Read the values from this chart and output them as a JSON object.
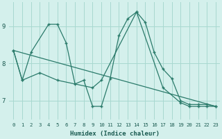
{
  "xlabel": "Humidex (Indice chaleur)",
  "background_color": "#d4f0ec",
  "grid_color": "#a8d8d0",
  "line_color": "#2a7a6a",
  "xlim": [
    -0.5,
    23.5
  ],
  "ylim": [
    6.5,
    9.65
  ],
  "yticks": [
    7,
    8,
    9
  ],
  "xticks": [
    0,
    1,
    2,
    3,
    4,
    5,
    6,
    7,
    8,
    9,
    10,
    11,
    12,
    13,
    14,
    15,
    16,
    17,
    18,
    19,
    20,
    21,
    22,
    23
  ],
  "line1_x": [
    0,
    1,
    2,
    4,
    5,
    6,
    7,
    8,
    9,
    10,
    11,
    12,
    13,
    14,
    15,
    16,
    17,
    18,
    19,
    20,
    21,
    22,
    23
  ],
  "line1_y": [
    8.35,
    7.55,
    8.3,
    9.05,
    9.05,
    8.55,
    7.45,
    7.55,
    6.85,
    6.85,
    7.6,
    8.75,
    9.2,
    9.38,
    9.1,
    8.3,
    7.85,
    7.6,
    7.0,
    6.9,
    6.9,
    6.9,
    6.85
  ],
  "line2_x": [
    0,
    1,
    3,
    5,
    9,
    10,
    14,
    17,
    19,
    20,
    21,
    22,
    23
  ],
  "line2_y": [
    8.35,
    7.55,
    7.75,
    7.55,
    7.35,
    7.55,
    9.38,
    7.35,
    6.95,
    6.85,
    6.85,
    6.85,
    6.85
  ],
  "line3_x": [
    0,
    23
  ],
  "line3_y": [
    8.35,
    6.85
  ]
}
